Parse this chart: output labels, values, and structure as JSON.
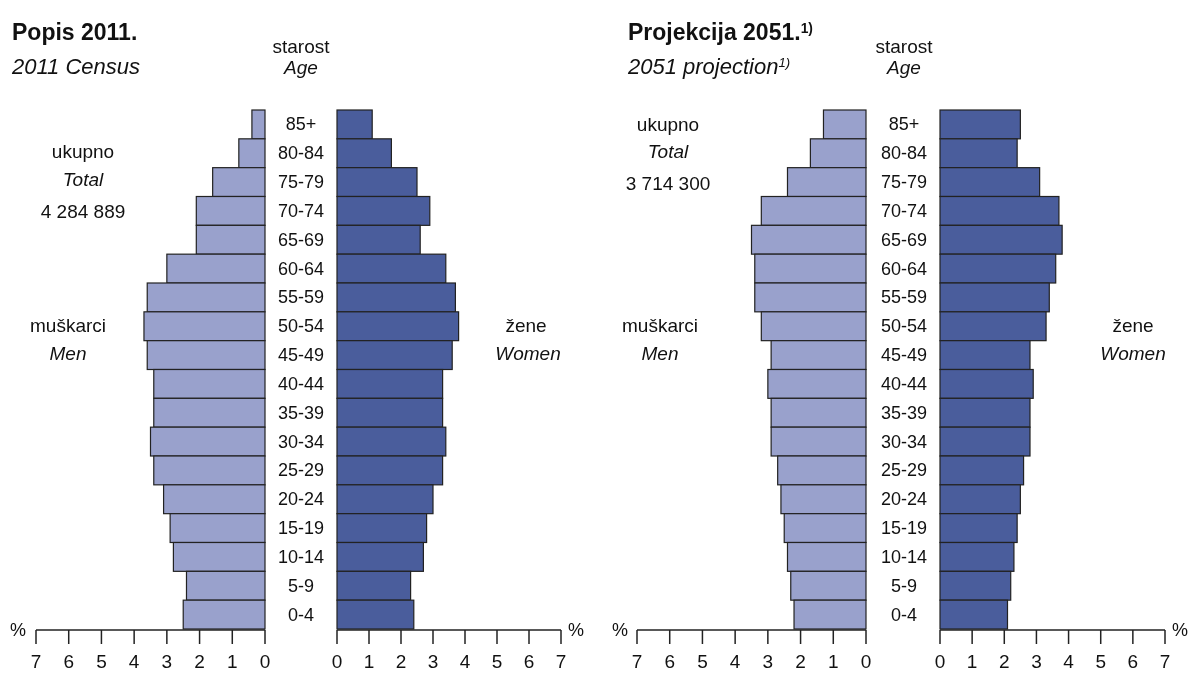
{
  "chart_data": [
    {
      "type": "bar",
      "orientation": "horizontal",
      "title": "Popis 2011.",
      "subtitle": "2011 Census",
      "xlabel": "%",
      "categories": [
        "85+",
        "80-84",
        "75-79",
        "70-74",
        "65-69",
        "60-64",
        "55-59",
        "50-54",
        "45-49",
        "40-44",
        "35-39",
        "30-34",
        "25-29",
        "20-24",
        "15-19",
        "10-14",
        "5-9",
        "0-4"
      ],
      "series": [
        {
          "color": "#99a1cc",
          "values": [
            0.4,
            0.8,
            1.6,
            2.1,
            2.1,
            3.0,
            3.6,
            3.7,
            3.6,
            3.4,
            3.4,
            3.5,
            3.4,
            3.1,
            2.9,
            2.8,
            2.4,
            2.5
          ]
        }
      ],
      "xlim": [
        7,
        0
      ],
      "xticks": [
        7,
        6,
        5,
        4,
        3,
        2,
        1,
        0
      ],
      "annotations": [
        "starost",
        "Age",
        "ukupno",
        "Total",
        "4 284 889",
        "muškarci",
        "Men"
      ]
    },
    {
      "type": "bar",
      "orientation": "horizontal",
      "xlabel": "%",
      "categories": [
        null,
        null,
        null,
        null,
        null,
        null,
        null,
        null,
        null,
        null,
        null,
        null,
        null,
        null,
        null,
        null,
        null,
        null
      ],
      "series": [
        {
          "color": "#4a5d9c",
          "values": [
            1.1,
            1.7,
            2.5,
            2.9,
            2.6,
            3.4,
            3.7,
            3.8,
            3.6,
            3.3,
            3.3,
            3.4,
            3.3,
            3.0,
            2.8,
            2.7,
            2.3,
            2.4
          ]
        }
      ],
      "xlim": [
        0,
        7
      ],
      "xticks": [
        0,
        1,
        2,
        3,
        4,
        5,
        6,
        7
      ],
      "annotations": [
        "žene",
        "Women"
      ]
    },
    {
      "type": "bar",
      "orientation": "horizontal",
      "title": "Projekcija 2051.$^{1)}$",
      "subtitle": "2051 projection$^{1)}$",
      "xlabel": "%",
      "categories": [
        "85+",
        "80-84",
        "75-79",
        "70-74",
        "65-69",
        "60-64",
        "55-59",
        "50-54",
        "45-49",
        "40-44",
        "35-39",
        "30-34",
        "25-29",
        "20-24",
        "15-19",
        "10-14",
        "5-9",
        "0-4"
      ],
      "series": [
        {
          "color": "#99a1cc",
          "values": [
            1.3,
            1.7,
            2.4,
            3.2,
            3.5,
            3.4,
            3.4,
            3.2,
            2.9,
            3.0,
            2.9,
            2.9,
            2.7,
            2.6,
            2.5,
            2.4,
            2.3,
            2.2
          ]
        }
      ],
      "xlim": [
        7,
        0
      ],
      "xticks": [
        7,
        6,
        5,
        4,
        3,
        2,
        1,
        0
      ],
      "annotations": [
        "starost",
        "Age",
        "ukupno",
        "Total",
        "3 714 300",
        "muškarci",
        "Men"
      ]
    },
    {
      "type": "bar",
      "orientation": "horizontal",
      "xlabel": "%",
      "categories": [
        null,
        null,
        null,
        null,
        null,
        null,
        null,
        null,
        null,
        null,
        null,
        null,
        null,
        null,
        null,
        null,
        null,
        null
      ],
      "series": [
        {
          "color": "#4a5d9c",
          "values": [
            2.5,
            2.4,
            3.1,
            3.7,
            3.8,
            3.6,
            3.4,
            3.3,
            2.8,
            2.9,
            2.8,
            2.8,
            2.6,
            2.5,
            2.4,
            2.3,
            2.2,
            2.1
          ]
        }
      ],
      "xlim": [
        0,
        7
      ],
      "xticks": [
        0,
        1,
        2,
        3,
        4,
        5,
        6,
        7
      ],
      "annotations": [
        "žene",
        "Women"
      ]
    }
  ]
}
